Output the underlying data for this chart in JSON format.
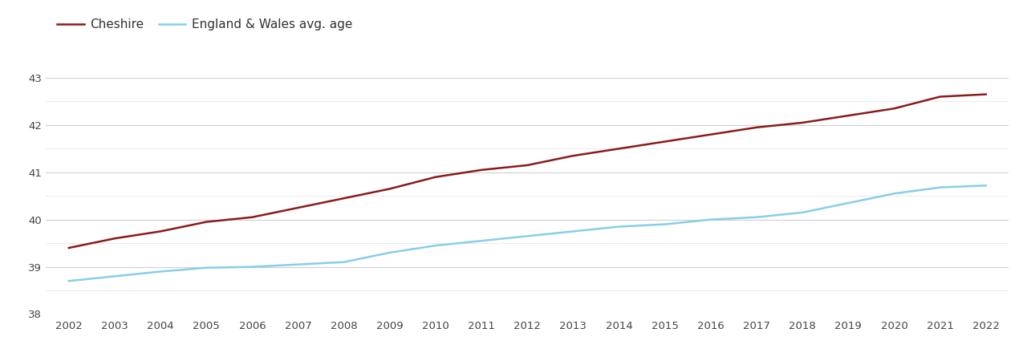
{
  "years": [
    2002,
    2003,
    2004,
    2005,
    2006,
    2007,
    2008,
    2009,
    2010,
    2011,
    2012,
    2013,
    2014,
    2015,
    2016,
    2017,
    2018,
    2019,
    2020,
    2021,
    2022
  ],
  "cheshire": [
    39.4,
    39.6,
    39.75,
    39.95,
    40.05,
    40.25,
    40.45,
    40.65,
    40.9,
    41.05,
    41.15,
    41.35,
    41.5,
    41.65,
    41.8,
    41.95,
    42.05,
    42.2,
    42.35,
    42.6,
    42.65
  ],
  "england_wales": [
    38.7,
    38.8,
    38.9,
    38.98,
    39.0,
    39.05,
    39.1,
    39.3,
    39.45,
    39.55,
    39.65,
    39.75,
    39.85,
    39.9,
    40.0,
    40.05,
    40.15,
    40.35,
    40.55,
    40.68,
    40.72
  ],
  "cheshire_color": "#8b1a1a",
  "england_wales_color": "#87ceeb",
  "cheshire_label": "Cheshire",
  "england_wales_label": "England & Wales avg. age",
  "ylim": [
    38,
    43.5
  ],
  "yticks": [
    38,
    39,
    40,
    41,
    42,
    43
  ],
  "minor_yticks": [
    38.5,
    39.5,
    40.5,
    41.5,
    42.5
  ],
  "background_color": "#ffffff",
  "grid_color": "#d0d0d0",
  "minor_grid_color": "#e8e8e8",
  "line_width": 1.8
}
